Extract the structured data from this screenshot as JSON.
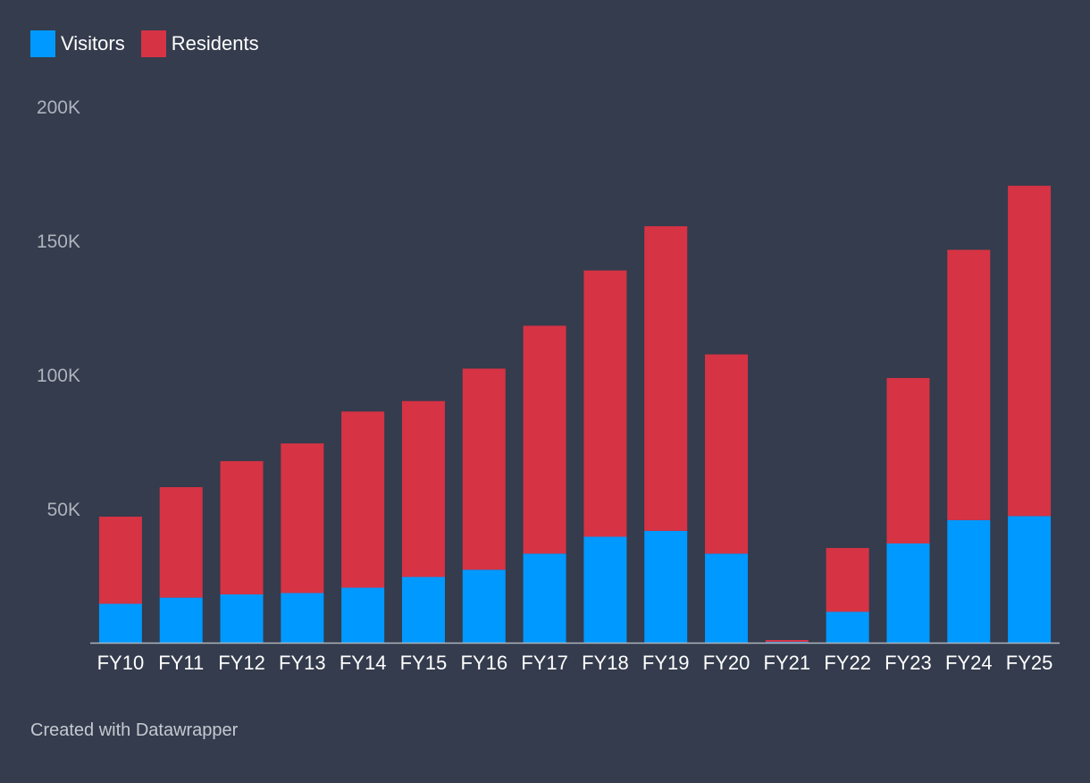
{
  "colors": {
    "background": "#343c4d",
    "visitors": "#0099ff",
    "residents": "#d63344",
    "axis_text": "#aeb3bd",
    "tick_text": "#ffffff",
    "baseline": "#aeb3bd"
  },
  "legend": [
    {
      "name": "Visitors",
      "color": "#0099ff"
    },
    {
      "name": "Residents",
      "color": "#d63344"
    }
  ],
  "footer": {
    "credit": "Created with Datawrapper"
  },
  "chart_data": {
    "type": "bar",
    "stacked": true,
    "title": "",
    "xlabel": "",
    "ylabel": "",
    "ylim": [
      0,
      200000
    ],
    "y_ticks": [
      {
        "value": 200000,
        "label": "200K"
      },
      {
        "value": 150000,
        "label": "150K"
      },
      {
        "value": 100000,
        "label": "100K"
      },
      {
        "value": 50000,
        "label": "50K"
      }
    ],
    "legend_position": "top-left",
    "grid": false,
    "categories": [
      "FY10",
      "FY11",
      "FY12",
      "FY13",
      "FY14",
      "FY15",
      "FY16",
      "FY17",
      "FY18",
      "FY19",
      "FY20",
      "FY21",
      "FY22",
      "FY23",
      "FY24",
      "FY25"
    ],
    "series": [
      {
        "name": "Visitors",
        "color": "#0099ff",
        "values": [
          14500,
          16800,
          18000,
          18500,
          20500,
          24500,
          27200,
          33200,
          39500,
          41700,
          33200,
          300,
          11500,
          37000,
          45700,
          47200
        ]
      },
      {
        "name": "Residents",
        "color": "#d63344",
        "values": [
          32500,
          41200,
          49700,
          55800,
          65700,
          65600,
          75000,
          85000,
          99300,
          113600,
          74300,
          700,
          23800,
          61700,
          100800,
          123200
        ]
      }
    ]
  }
}
